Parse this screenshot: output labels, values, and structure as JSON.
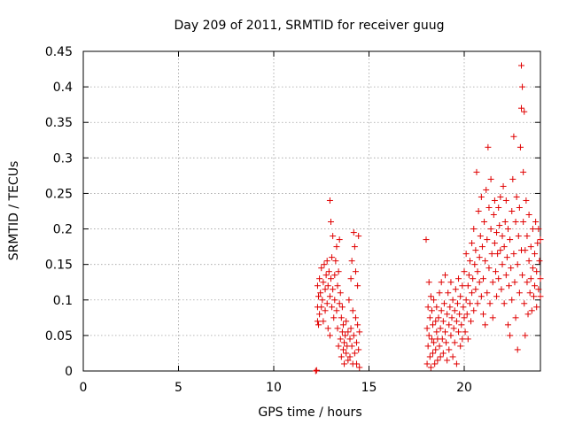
{
  "chart_data": {
    "type": "scatter",
    "title": "Day 209 of 2011, SRMTID for receiver guug",
    "xlabel": "GPS time / hours",
    "ylabel": "SRMTID / TECUs",
    "xlim": [
      0,
      24
    ],
    "ylim": [
      0,
      0.45
    ],
    "xticks": [
      0,
      5,
      10,
      15,
      20
    ],
    "xtick_labels": [
      "0",
      "5",
      "10",
      "15",
      "20"
    ],
    "yticks": [
      0,
      0.05,
      0.1,
      0.15,
      0.2,
      0.25,
      0.3,
      0.35,
      0.4,
      0.45
    ],
    "ytick_labels": [
      "0",
      "0.05",
      "0.1",
      "0.15",
      "0.2",
      "0.25",
      "0.3",
      "0.35",
      "0.4",
      "0.45"
    ],
    "grid": true,
    "marker": "plus",
    "color": "#e00000",
    "series": [
      {
        "name": "SRMTID",
        "points": [
          [
            12.2,
            0.0
          ],
          [
            12.25,
            0.001
          ],
          [
            12.3,
            0.07
          ],
          [
            12.3,
            0.09
          ],
          [
            12.3,
            0.12
          ],
          [
            12.35,
            0.065
          ],
          [
            12.35,
            0.105
          ],
          [
            12.4,
            0.13
          ],
          [
            12.4,
            0.08
          ],
          [
            12.45,
            0.11
          ],
          [
            12.5,
            0.145
          ],
          [
            12.5,
            0.09
          ],
          [
            12.55,
            0.1
          ],
          [
            12.6,
            0.125
          ],
          [
            12.6,
            0.07
          ],
          [
            12.65,
            0.15
          ],
          [
            12.7,
            0.115
          ],
          [
            12.7,
            0.085
          ],
          [
            12.75,
            0.135
          ],
          [
            12.8,
            0.095
          ],
          [
            12.8,
            0.155
          ],
          [
            12.85,
            0.06
          ],
          [
            12.85,
            0.12
          ],
          [
            12.9,
            0.14
          ],
          [
            12.95,
            0.105
          ],
          [
            12.95,
            0.05
          ],
          [
            12.95,
            0.24
          ],
          [
            13.0,
            0.13
          ],
          [
            13.0,
            0.21
          ],
          [
            13.05,
            0.09
          ],
          [
            13.05,
            0.16
          ],
          [
            13.1,
            0.115
          ],
          [
            13.1,
            0.19
          ],
          [
            13.15,
            0.075
          ],
          [
            13.2,
            0.135
          ],
          [
            13.2,
            0.1
          ],
          [
            13.25,
            0.155
          ],
          [
            13.3,
            0.085
          ],
          [
            13.3,
            0.175
          ],
          [
            13.35,
            0.06
          ],
          [
            13.35,
            0.12
          ],
          [
            13.4,
            0.14
          ],
          [
            13.4,
            0.035
          ],
          [
            13.45,
            0.095
          ],
          [
            13.45,
            0.185
          ],
          [
            13.5,
            0.11
          ],
          [
            13.5,
            0.045
          ],
          [
            13.55,
            0.075
          ],
          [
            13.55,
            0.02
          ],
          [
            13.6,
            0.09
          ],
          [
            13.6,
            0.055
          ],
          [
            13.65,
            0.03
          ],
          [
            13.65,
            0.065
          ],
          [
            13.7,
            0.04
          ],
          [
            13.7,
            0.01
          ],
          [
            13.75,
            0.05
          ],
          [
            13.8,
            0.025
          ],
          [
            13.8,
            0.07
          ],
          [
            13.85,
            0.035
          ],
          [
            13.9,
            0.015
          ],
          [
            13.9,
            0.055
          ],
          [
            13.95,
            0.1
          ],
          [
            14.0,
            0.045
          ],
          [
            14.0,
            0.02
          ],
          [
            14.05,
            0.13
          ],
          [
            14.05,
            0.06
          ],
          [
            14.1,
            0.035
          ],
          [
            14.1,
            0.155
          ],
          [
            14.15,
            0.01
          ],
          [
            14.15,
            0.085
          ],
          [
            14.2,
            0.195
          ],
          [
            14.2,
            0.05
          ],
          [
            14.25,
            0.175
          ],
          [
            14.25,
            0.025
          ],
          [
            14.3,
            0.075
          ],
          [
            14.3,
            0.14
          ],
          [
            14.35,
            0.04
          ],
          [
            14.35,
            0.01
          ],
          [
            14.4,
            0.065
          ],
          [
            14.4,
            0.12
          ],
          [
            14.45,
            0.19
          ],
          [
            14.45,
            0.03
          ],
          [
            14.5,
            0.055
          ],
          [
            14.5,
            0.005
          ],
          [
            18.0,
            0.185
          ],
          [
            18.05,
            0.06
          ],
          [
            18.05,
            0.01
          ],
          [
            18.1,
            0.09
          ],
          [
            18.1,
            0.035
          ],
          [
            18.15,
            0.125
          ],
          [
            18.15,
            0.05
          ],
          [
            18.2,
            0.02
          ],
          [
            18.2,
            0.075
          ],
          [
            18.25,
            0.105
          ],
          [
            18.25,
            0.005
          ],
          [
            18.3,
            0.045
          ],
          [
            18.3,
            0.085
          ],
          [
            18.35,
            0.025
          ],
          [
            18.35,
            0.065
          ],
          [
            18.4,
            0.1
          ],
          [
            18.4,
            0.04
          ],
          [
            18.45,
            0.01
          ],
          [
            18.5,
            0.07
          ],
          [
            18.5,
            0.03
          ],
          [
            18.55,
            0.055
          ],
          [
            18.55,
            0.09
          ],
          [
            18.6,
            0.015
          ],
          [
            18.6,
            0.045
          ],
          [
            18.65,
            0.075
          ],
          [
            18.7,
            0.035
          ],
          [
            18.7,
            0.11
          ],
          [
            18.75,
            0.06
          ],
          [
            18.75,
            0.02
          ],
          [
            18.8,
            0.085
          ],
          [
            18.8,
            0.125
          ],
          [
            18.85,
            0.045
          ],
          [
            18.9,
            0.07
          ],
          [
            18.9,
            0.025
          ],
          [
            18.95,
            0.095
          ],
          [
            19.0,
            0.055
          ],
          [
            19.0,
            0.135
          ],
          [
            19.05,
            0.04
          ],
          [
            19.1,
            0.08
          ],
          [
            19.1,
            0.015
          ],
          [
            19.15,
            0.11
          ],
          [
            19.2,
            0.065
          ],
          [
            19.2,
            0.03
          ],
          [
            19.25,
            0.09
          ],
          [
            19.3,
            0.05
          ],
          [
            19.3,
            0.125
          ],
          [
            19.35,
            0.075
          ],
          [
            19.4,
            0.02
          ],
          [
            19.4,
            0.1
          ],
          [
            19.45,
            0.06
          ],
          [
            19.5,
            0.085
          ],
          [
            19.5,
            0.04
          ],
          [
            19.55,
            0.115
          ],
          [
            19.6,
            0.07
          ],
          [
            19.6,
            0.01
          ],
          [
            19.65,
            0.095
          ],
          [
            19.7,
            0.055
          ],
          [
            19.7,
            0.13
          ],
          [
            19.75,
            0.08
          ],
          [
            19.8,
            0.035
          ],
          [
            19.8,
            0.105
          ],
          [
            19.85,
            0.065
          ],
          [
            19.9,
            0.12
          ],
          [
            19.9,
            0.045
          ],
          [
            19.95,
            0.09
          ],
          [
            20.0,
            0.075
          ],
          [
            20.0,
            0.14
          ],
          [
            20.05,
            0.055
          ],
          [
            20.1,
            0.1
          ],
          [
            20.1,
            0.165
          ],
          [
            20.15,
            0.08
          ],
          [
            20.2,
            0.12
          ],
          [
            20.2,
            0.045
          ],
          [
            20.25,
            0.135
          ],
          [
            20.3,
            0.095
          ],
          [
            20.3,
            0.155
          ],
          [
            20.35,
            0.07
          ],
          [
            20.4,
            0.11
          ],
          [
            20.4,
            0.18
          ],
          [
            20.45,
            0.13
          ],
          [
            20.5,
            0.085
          ],
          [
            20.5,
            0.2
          ],
          [
            20.55,
            0.15
          ],
          [
            20.6,
            0.115
          ],
          [
            20.6,
            0.17
          ],
          [
            20.65,
            0.28
          ],
          [
            20.7,
            0.14
          ],
          [
            20.7,
            0.095
          ],
          [
            20.75,
            0.225
          ],
          [
            20.8,
            0.16
          ],
          [
            20.8,
            0.125
          ],
          [
            20.85,
            0.19
          ],
          [
            20.9,
            0.105
          ],
          [
            20.9,
            0.245
          ],
          [
            20.95,
            0.175
          ],
          [
            21.0,
            0.13
          ],
          [
            21.0,
            0.08
          ],
          [
            21.05,
            0.21
          ],
          [
            21.1,
            0.155
          ],
          [
            21.1,
            0.065
          ],
          [
            21.15,
            0.255
          ],
          [
            21.2,
            0.185
          ],
          [
            21.2,
            0.11
          ],
          [
            21.25,
            0.315
          ],
          [
            21.3,
            0.23
          ],
          [
            21.3,
            0.145
          ],
          [
            21.35,
            0.095
          ],
          [
            21.4,
            0.2
          ],
          [
            21.4,
            0.27
          ],
          [
            21.45,
            0.165
          ],
          [
            21.5,
            0.125
          ],
          [
            21.5,
            0.075
          ],
          [
            21.55,
            0.22
          ],
          [
            21.6,
            0.18
          ],
          [
            21.6,
            0.24
          ],
          [
            21.65,
            0.14
          ],
          [
            21.7,
            0.195
          ],
          [
            21.7,
            0.105
          ],
          [
            21.75,
            0.165
          ],
          [
            21.8,
            0.23
          ],
          [
            21.8,
            0.13
          ],
          [
            21.85,
            0.205
          ],
          [
            21.9,
            0.17
          ],
          [
            21.9,
            0.245
          ],
          [
            21.95,
            0.115
          ],
          [
            22.0,
            0.19
          ],
          [
            22.0,
            0.15
          ],
          [
            22.05,
            0.26
          ],
          [
            22.1,
            0.175
          ],
          [
            22.1,
            0.095
          ],
          [
            22.15,
            0.21
          ],
          [
            22.2,
            0.135
          ],
          [
            22.2,
            0.24
          ],
          [
            22.25,
            0.16
          ],
          [
            22.3,
            0.065
          ],
          [
            22.3,
            0.2
          ],
          [
            22.35,
            0.12
          ],
          [
            22.4,
            0.185
          ],
          [
            22.4,
            0.05
          ],
          [
            22.45,
            0.145
          ],
          [
            22.5,
            0.225
          ],
          [
            22.5,
            0.1
          ],
          [
            22.55,
            0.27
          ],
          [
            22.6,
            0.165
          ],
          [
            22.6,
            0.33
          ],
          [
            22.65,
            0.125
          ],
          [
            22.7,
            0.21
          ],
          [
            22.7,
            0.075
          ],
          [
            22.75,
            0.245
          ],
          [
            22.8,
            0.03
          ],
          [
            22.8,
            0.15
          ],
          [
            22.85,
            0.19
          ],
          [
            22.9,
            0.11
          ],
          [
            22.9,
            0.23
          ],
          [
            22.95,
            0.315
          ],
          [
            23.0,
            0.17
          ],
          [
            23.0,
            0.37
          ],
          [
            23.0,
            0.43
          ],
          [
            23.05,
            0.135
          ],
          [
            23.05,
            0.4
          ],
          [
            23.1,
            0.21
          ],
          [
            23.1,
            0.28
          ],
          [
            23.15,
            0.095
          ],
          [
            23.15,
            0.365
          ],
          [
            23.2,
            0.17
          ],
          [
            23.2,
            0.05
          ],
          [
            23.25,
            0.24
          ],
          [
            23.3,
            0.125
          ],
          [
            23.3,
            0.19
          ],
          [
            23.35,
            0.08
          ],
          [
            23.4,
            0.155
          ],
          [
            23.4,
            0.22
          ],
          [
            23.45,
            0.11
          ],
          [
            23.5,
            0.175
          ],
          [
            23.5,
            0.13
          ],
          [
            23.55,
            0.085
          ],
          [
            23.6,
            0.2
          ],
          [
            23.6,
            0.145
          ],
          [
            23.65,
            0.105
          ],
          [
            23.7,
            0.165
          ],
          [
            23.7,
            0.12
          ],
          [
            23.75,
            0.21
          ],
          [
            23.8,
            0.14
          ],
          [
            23.8,
            0.09
          ],
          [
            23.85,
            0.18
          ],
          [
            23.9,
            0.115
          ],
          [
            23.9,
            0.2
          ],
          [
            23.95,
            0.155
          ],
          [
            24.0,
            0.13
          ],
          [
            24.0,
            0.185
          ],
          [
            24.0,
            0.105
          ]
        ]
      }
    ]
  }
}
